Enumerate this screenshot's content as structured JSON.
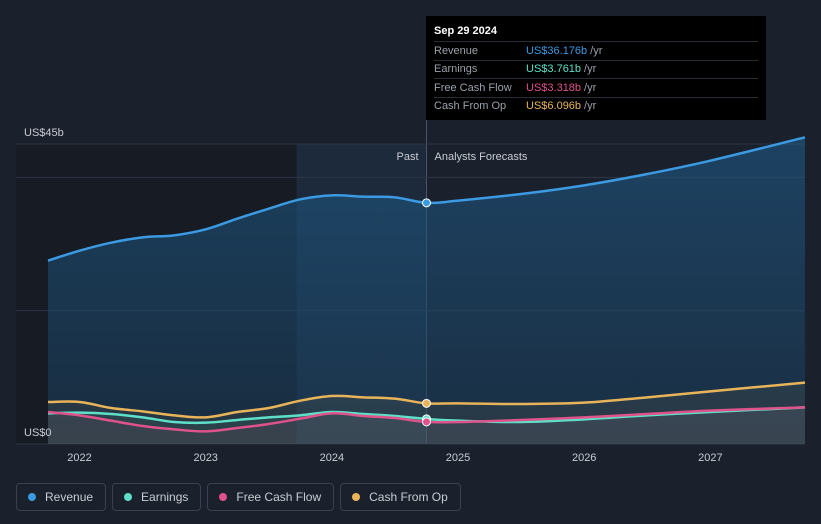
{
  "tooltip": {
    "date": "Sep 29 2024",
    "rows": [
      {
        "label": "Revenue",
        "value": "US$36.176b",
        "unit": "/yr",
        "color": "#3b9ae1"
      },
      {
        "label": "Earnings",
        "value": "US$3.761b",
        "unit": "/yr",
        "color": "#5ee0c8"
      },
      {
        "label": "Free Cash Flow",
        "value": "US$3.318b",
        "unit": "/yr",
        "color": "#e0528c"
      },
      {
        "label": "Cash From Op",
        "value": "US$6.096b",
        "unit": "/yr",
        "color": "#e8b45a"
      }
    ]
  },
  "legend": [
    {
      "label": "Revenue",
      "color": "#3b9ae1"
    },
    {
      "label": "Earnings",
      "color": "#5ee0c8"
    },
    {
      "label": "Free Cash Flow",
      "color": "#e0528c"
    },
    {
      "label": "Cash From Op",
      "color": "#e8b45a"
    }
  ],
  "chart_data": {
    "type": "area",
    "y_top_label": "US$45b",
    "y_bottom_label": "US$0",
    "past_label": "Past",
    "forecast_label": "Analysts Forecasts",
    "ylim": [
      0,
      45
    ],
    "xlim": [
      2021.75,
      2027.75
    ],
    "divider_x": 2024.75,
    "x_ticks": [
      2022,
      2023,
      2024,
      2025,
      2026,
      2027
    ],
    "series": [
      {
        "name": "Revenue",
        "color": "#3b9ae1",
        "points": [
          [
            2021.75,
            27.5
          ],
          [
            2022.0,
            29.0
          ],
          [
            2022.25,
            30.2
          ],
          [
            2022.5,
            31.0
          ],
          [
            2022.75,
            31.3
          ],
          [
            2023.0,
            32.2
          ],
          [
            2023.25,
            33.8
          ],
          [
            2023.5,
            35.3
          ],
          [
            2023.75,
            36.7
          ],
          [
            2024.0,
            37.3
          ],
          [
            2024.25,
            37.1
          ],
          [
            2024.5,
            37.0
          ],
          [
            2024.75,
            36.176
          ],
          [
            2025.0,
            36.5
          ],
          [
            2025.5,
            37.5
          ],
          [
            2026.0,
            38.8
          ],
          [
            2026.5,
            40.5
          ],
          [
            2027.0,
            42.5
          ],
          [
            2027.75,
            46.0
          ]
        ]
      },
      {
        "name": "Earnings",
        "color": "#5ee0c8",
        "points": [
          [
            2021.75,
            4.6
          ],
          [
            2022.0,
            4.7
          ],
          [
            2022.25,
            4.5
          ],
          [
            2022.5,
            4.0
          ],
          [
            2022.75,
            3.3
          ],
          [
            2023.0,
            3.2
          ],
          [
            2023.25,
            3.6
          ],
          [
            2023.5,
            4.0
          ],
          [
            2023.75,
            4.3
          ],
          [
            2024.0,
            4.8
          ],
          [
            2024.25,
            4.5
          ],
          [
            2024.5,
            4.2
          ],
          [
            2024.75,
            3.761
          ],
          [
            2025.0,
            3.5
          ],
          [
            2025.5,
            3.3
          ],
          [
            2026.0,
            3.7
          ],
          [
            2026.5,
            4.3
          ],
          [
            2027.0,
            4.8
          ],
          [
            2027.75,
            5.5
          ]
        ]
      },
      {
        "name": "Free Cash Flow",
        "color": "#e0528c",
        "points": [
          [
            2021.75,
            4.8
          ],
          [
            2022.0,
            4.3
          ],
          [
            2022.25,
            3.5
          ],
          [
            2022.5,
            2.7
          ],
          [
            2022.75,
            2.2
          ],
          [
            2023.0,
            1.9
          ],
          [
            2023.25,
            2.4
          ],
          [
            2023.5,
            3.0
          ],
          [
            2023.75,
            3.8
          ],
          [
            2024.0,
            4.6
          ],
          [
            2024.25,
            4.2
          ],
          [
            2024.5,
            3.9
          ],
          [
            2024.75,
            3.318
          ],
          [
            2025.0,
            3.3
          ],
          [
            2025.5,
            3.6
          ],
          [
            2026.0,
            4.0
          ],
          [
            2026.5,
            4.5
          ],
          [
            2027.0,
            5.0
          ],
          [
            2027.75,
            5.5
          ]
        ]
      },
      {
        "name": "Cash From Op",
        "color": "#e8b45a",
        "points": [
          [
            2021.75,
            6.3
          ],
          [
            2022.0,
            6.3
          ],
          [
            2022.25,
            5.4
          ],
          [
            2022.5,
            4.9
          ],
          [
            2022.75,
            4.3
          ],
          [
            2023.0,
            4.0
          ],
          [
            2023.25,
            4.8
          ],
          [
            2023.5,
            5.4
          ],
          [
            2023.75,
            6.5
          ],
          [
            2024.0,
            7.2
          ],
          [
            2024.25,
            7.0
          ],
          [
            2024.5,
            6.8
          ],
          [
            2024.75,
            6.096
          ],
          [
            2025.0,
            6.1
          ],
          [
            2025.5,
            6.0
          ],
          [
            2026.0,
            6.2
          ],
          [
            2026.5,
            7.0
          ],
          [
            2027.0,
            7.9
          ],
          [
            2027.75,
            9.2
          ]
        ]
      }
    ]
  }
}
